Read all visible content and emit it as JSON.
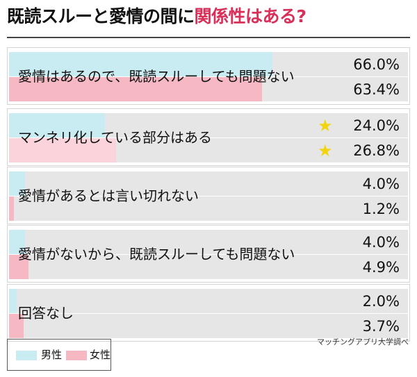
{
  "header": {
    "title_main": "既読スルーと愛情の間に",
    "title_highlight": "関係性はある?"
  },
  "colors": {
    "male": "#c9ecf2",
    "female": "#f6b9c3",
    "female_light": "#fad4da",
    "track": "#e6e6e6",
    "title_highlight": "#d9305a",
    "star": "#f2d40e"
  },
  "chart_data": {
    "type": "bar",
    "orientation": "horizontal",
    "title": "既読スルーと愛情の間に関係性はある?",
    "categories": [
      "愛情はあるので、既読スルーしても問題ない",
      "マンネリ化している部分はある",
      "愛情があるとは言い切れない",
      "愛情がないから、既読スルーしても問題ない",
      "回答なし"
    ],
    "series": [
      {
        "name": "男性",
        "values": [
          66.0,
          24.0,
          4.0,
          4.0,
          2.0
        ],
        "labels": [
          "66.0%",
          "24.0%",
          "4.0%",
          "4.0%",
          "2.0%"
        ]
      },
      {
        "name": "女性",
        "values": [
          63.4,
          26.8,
          1.2,
          4.9,
          3.7
        ],
        "labels": [
          "63.4%",
          "26.8%",
          "1.2%",
          "4.9%",
          "3.7%"
        ]
      }
    ],
    "xlim": [
      0,
      100
    ],
    "unit": "%",
    "highlighted_category_index": 1,
    "legend": "bottom-left"
  },
  "legend": {
    "male_label": "男性",
    "female_label": "女性"
  },
  "source": "マッチングアプリ大学調べ"
}
